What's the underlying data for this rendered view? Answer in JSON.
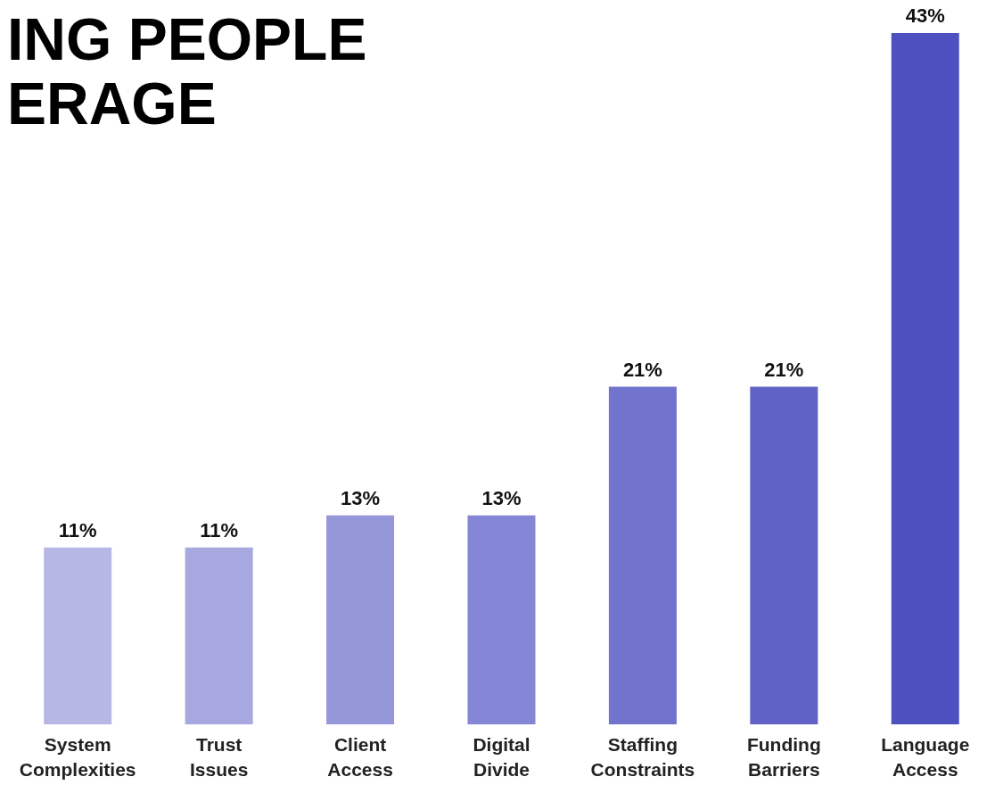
{
  "chart_data": {
    "type": "bar",
    "title": "ING PEOPLE\nERAGE",
    "categories": [
      "System Complexities",
      "Trust Issues",
      "Client Access",
      "Digital Divide",
      "Staffing Constraints",
      "Funding Barriers",
      "Language Access"
    ],
    "values": [
      11,
      11,
      13,
      13,
      21,
      21,
      43
    ],
    "value_labels": [
      "11%",
      "11%",
      "13%",
      "13%",
      "21%",
      "21%",
      "43%"
    ],
    "colors": [
      "#b7b7e6",
      "#a7a8e0",
      "#9697d9",
      "#8586d5",
      "#7173cc",
      "#6062c6",
      "#4f50c0"
    ]
  }
}
